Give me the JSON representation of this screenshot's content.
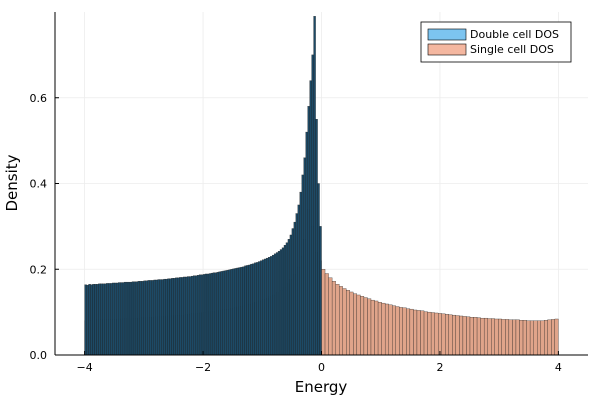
{
  "chart_data": {
    "type": "bar",
    "subtype": "histogram-overlay",
    "xlabel": "Energy",
    "ylabel": "Density",
    "xlim": [
      -4.5,
      4.5
    ],
    "ylim": [
      0,
      0.8
    ],
    "xticks": [
      -4,
      -2,
      0,
      2,
      4
    ],
    "xtick_labels": [
      "−4",
      "−2",
      "0",
      "2",
      "4"
    ],
    "yticks": [
      0,
      0.2,
      0.4,
      0.6
    ],
    "ytick_labels": [
      "0.0",
      "0.2",
      "0.4",
      "0.6"
    ],
    "grid": true,
    "legend_position": "top-right",
    "bin_width": 0.04,
    "series": [
      {
        "name": "Double cell DOS",
        "color": "#1d4a66",
        "legend_color": "#7cc4f0",
        "x_range": [
          -4,
          0
        ],
        "values": [
          0.164,
          0.163,
          0.165,
          0.164,
          0.165,
          0.165,
          0.165,
          0.166,
          0.166,
          0.166,
          0.166,
          0.167,
          0.167,
          0.167,
          0.168,
          0.168,
          0.168,
          0.169,
          0.169,
          0.169,
          0.17,
          0.17,
          0.17,
          0.17,
          0.171,
          0.171,
          0.171,
          0.172,
          0.172,
          0.172,
          0.173,
          0.173,
          0.174,
          0.174,
          0.174,
          0.175,
          0.175,
          0.176,
          0.176,
          0.176,
          0.177,
          0.177,
          0.178,
          0.178,
          0.179,
          0.179,
          0.18,
          0.18,
          0.181,
          0.181,
          0.182,
          0.182,
          0.183,
          0.183,
          0.184,
          0.185,
          0.185,
          0.186,
          0.187,
          0.187,
          0.188,
          0.189,
          0.189,
          0.19,
          0.191,
          0.192,
          0.192,
          0.193,
          0.194,
          0.195,
          0.196,
          0.197,
          0.198,
          0.199,
          0.2,
          0.201,
          0.202,
          0.203,
          0.204,
          0.205,
          0.206,
          0.208,
          0.209,
          0.21,
          0.212,
          0.213,
          0.215,
          0.216,
          0.218,
          0.22,
          0.222,
          0.224,
          0.226,
          0.228,
          0.23,
          0.233,
          0.236,
          0.239,
          0.242,
          0.246,
          0.25,
          0.256,
          0.262,
          0.27,
          0.28,
          0.295,
          0.31,
          0.33,
          0.35,
          0.38,
          0.42,
          0.46,
          0.52,
          0.58,
          0.64,
          0.7,
          0.79,
          0.55,
          0.4,
          0.3
        ]
      },
      {
        "name": "Single cell DOS",
        "color": "#e0a48a",
        "legend_color": "#f4b7a0",
        "x_range": [
          -4,
          4
        ],
        "values": [
          0.08,
          0.081,
          0.081,
          0.082,
          0.082,
          0.082,
          0.083,
          0.083,
          0.083,
          0.084,
          0.084,
          0.085,
          0.085,
          0.085,
          0.086,
          0.086,
          0.087,
          0.087,
          0.088,
          0.088,
          0.089,
          0.089,
          0.09,
          0.091,
          0.091,
          0.092,
          0.093,
          0.093,
          0.094,
          0.095,
          0.096,
          0.097,
          0.098,
          0.099,
          0.1,
          0.101,
          0.102,
          0.103,
          0.104,
          0.106,
          0.107,
          0.109,
          0.11,
          0.112,
          0.114,
          0.116,
          0.118,
          0.12,
          0.123,
          0.126,
          0.129,
          0.132,
          0.136,
          0.14,
          0.145,
          0.151,
          0.158,
          0.166,
          0.176,
          0.188,
          0.205,
          0.23,
          0.27,
          0.34,
          0.3,
          0.24,
          0.22,
          0.2,
          0.19,
          0.18,
          0.172,
          0.165,
          0.16,
          0.155,
          0.151,
          0.147,
          0.143,
          0.14,
          0.137,
          0.134,
          0.131,
          0.128,
          0.126,
          0.123,
          0.121,
          0.119,
          0.117,
          0.115,
          0.113,
          0.111,
          0.11,
          0.108,
          0.107,
          0.105,
          0.104,
          0.103,
          0.101,
          0.1,
          0.099,
          0.098,
          0.097,
          0.096,
          0.095,
          0.094,
          0.093,
          0.092,
          0.091,
          0.09,
          0.089,
          0.088,
          0.088,
          0.087,
          0.086,
          0.086,
          0.085,
          0.085,
          0.084,
          0.084,
          0.083,
          0.083,
          0.082,
          0.082,
          0.082,
          0.081,
          0.081,
          0.08,
          0.08,
          0.08,
          0.08,
          0.08,
          0.081,
          0.082,
          0.083,
          0.084
        ]
      }
    ]
  }
}
